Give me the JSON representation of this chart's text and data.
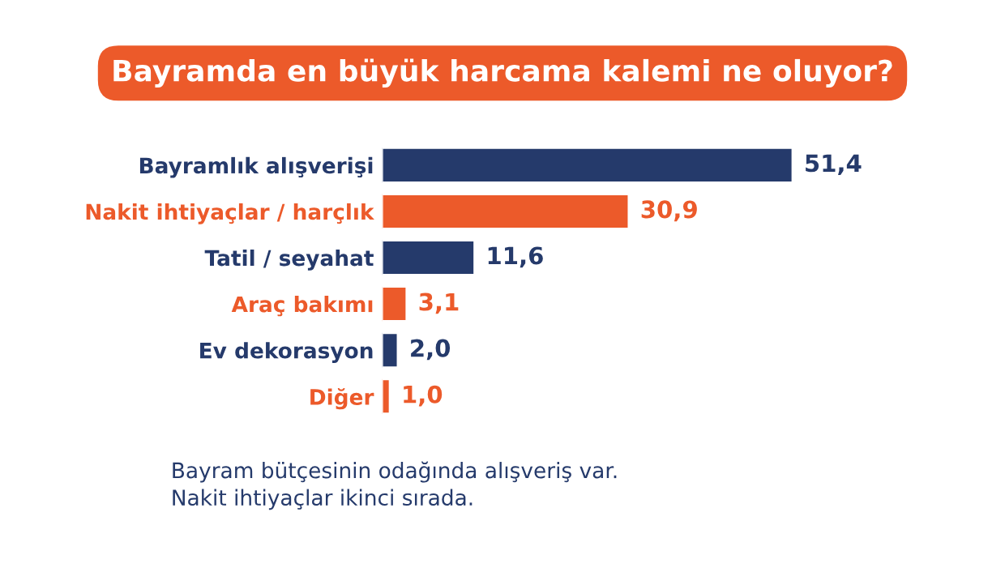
{
  "chart_data": {
    "type": "bar",
    "orientation": "horizontal",
    "title": "Bayramda en büyük harcama kalemi ne oluyor?",
    "categories": [
      "Bayramlık alışverişi",
      "Nakit ihtiyaçlar / harçlık",
      "Tatil / seyahat",
      "Araç bakımı",
      "Ev dekorasyon",
      "Diğer"
    ],
    "values": [
      51.4,
      30.9,
      11.6,
      3.1,
      2.0,
      1.0
    ],
    "value_labels": [
      "51,4",
      "30,9",
      "11,6",
      "3,1",
      "2,0",
      "1,0"
    ],
    "colors": [
      "#253a6b",
      "#ec5a2a",
      "#253a6b",
      "#ec5a2a",
      "#253a6b",
      "#ec5a2a"
    ],
    "annotations": [
      "Bayram bütçesinin odağında alışveriş var.\nNakit ihtiyaçlar ikinci sırada."
    ]
  }
}
